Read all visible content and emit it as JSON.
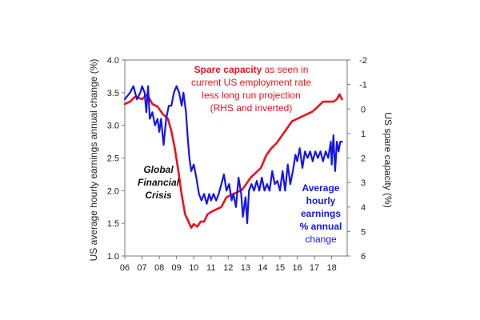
{
  "chart_data": {
    "type": "line",
    "title": "",
    "x_tick_labels": [
      "06",
      "07",
      "08",
      "09",
      "10",
      "11",
      "12",
      "13",
      "14",
      "15",
      "16",
      "17",
      "18"
    ],
    "x_range": [
      2006.0,
      2018.9
    ],
    "left_axis": {
      "label": "US average hourly earnings annual change (%)",
      "range": [
        1.0,
        4.0
      ],
      "ticks": [
        "1.0",
        "1.5",
        "2.0",
        "2.5",
        "3.0",
        "3.5",
        "4.0"
      ]
    },
    "right_axis": {
      "label": "US spare capacity (%)",
      "range": [
        6,
        -2
      ],
      "inverted": true,
      "ticks": [
        "-2",
        "-1",
        "0",
        "1",
        "2",
        "3",
        "4",
        "5",
        "6"
      ]
    },
    "series": [
      {
        "key": "spare",
        "axis": "right",
        "color": "#e8131c",
        "points": [
          [
            2006.0,
            -0.2
          ],
          [
            2006.3,
            -0.3
          ],
          [
            2006.6,
            -0.5
          ],
          [
            2007.0,
            -0.4
          ],
          [
            2007.3,
            -0.6
          ],
          [
            2007.6,
            -0.2
          ],
          [
            2007.9,
            -0.1
          ],
          [
            2008.2,
            0.2
          ],
          [
            2008.5,
            0.4
          ],
          [
            2008.7,
            0.9
          ],
          [
            2008.9,
            1.6
          ],
          [
            2009.1,
            2.5
          ],
          [
            2009.3,
            3.5
          ],
          [
            2009.5,
            4.3
          ],
          [
            2009.7,
            4.6
          ],
          [
            2009.85,
            4.85
          ],
          [
            2010.0,
            4.7
          ],
          [
            2010.2,
            4.8
          ],
          [
            2010.4,
            4.6
          ],
          [
            2010.6,
            4.6
          ],
          [
            2010.8,
            4.3
          ],
          [
            2011.0,
            4.2
          ],
          [
            2011.3,
            4.1
          ],
          [
            2011.6,
            4.0
          ],
          [
            2011.9,
            3.6
          ],
          [
            2012.2,
            3.5
          ],
          [
            2012.5,
            3.4
          ],
          [
            2012.8,
            3.3
          ],
          [
            2013.0,
            3.1
          ],
          [
            2013.3,
            2.8
          ],
          [
            2013.6,
            2.6
          ],
          [
            2013.9,
            2.4
          ],
          [
            2014.2,
            1.9
          ],
          [
            2014.5,
            1.6
          ],
          [
            2014.8,
            1.4
          ],
          [
            2015.1,
            1.1
          ],
          [
            2015.4,
            0.8
          ],
          [
            2015.7,
            0.5
          ],
          [
            2016.0,
            0.4
          ],
          [
            2016.3,
            0.3
          ],
          [
            2016.6,
            0.2
          ],
          [
            2016.9,
            0.1
          ],
          [
            2017.2,
            -0.1
          ],
          [
            2017.5,
            -0.3
          ],
          [
            2017.8,
            -0.3
          ],
          [
            2018.1,
            -0.3
          ],
          [
            2018.3,
            -0.4
          ],
          [
            2018.45,
            -0.6
          ],
          [
            2018.6,
            -0.4
          ]
        ]
      },
      {
        "key": "ahe",
        "axis": "left",
        "color": "#1616e6",
        "points": [
          [
            2006.0,
            3.4
          ],
          [
            2006.3,
            3.5
          ],
          [
            2006.5,
            3.6
          ],
          [
            2006.7,
            3.4
          ],
          [
            2006.9,
            3.5
          ],
          [
            2007.0,
            3.6
          ],
          [
            2007.15,
            3.5
          ],
          [
            2007.25,
            3.2
          ],
          [
            2007.35,
            3.6
          ],
          [
            2007.45,
            3.1
          ],
          [
            2007.6,
            3.2
          ],
          [
            2007.75,
            3.0
          ],
          [
            2007.9,
            3.1
          ],
          [
            2008.0,
            2.9
          ],
          [
            2008.1,
            3.1
          ],
          [
            2008.25,
            2.7
          ],
          [
            2008.4,
            3.1
          ],
          [
            2008.55,
            3.3
          ],
          [
            2008.7,
            3.3
          ],
          [
            2008.85,
            3.5
          ],
          [
            2009.0,
            3.6
          ],
          [
            2009.15,
            3.5
          ],
          [
            2009.3,
            3.3
          ],
          [
            2009.4,
            3.5
          ],
          [
            2009.55,
            3.2
          ],
          [
            2009.65,
            2.8
          ],
          [
            2009.75,
            2.5
          ],
          [
            2009.85,
            2.3
          ],
          [
            2010.0,
            2.4
          ],
          [
            2010.15,
            2.2
          ],
          [
            2010.3,
            1.95
          ],
          [
            2010.45,
            1.85
          ],
          [
            2010.6,
            1.95
          ],
          [
            2010.75,
            1.8
          ],
          [
            2010.9,
            1.95
          ],
          [
            2011.0,
            1.85
          ],
          [
            2011.15,
            1.95
          ],
          [
            2011.3,
            1.85
          ],
          [
            2011.45,
            1.95
          ],
          [
            2011.6,
            2.1
          ],
          [
            2011.75,
            2.25
          ],
          [
            2011.9,
            2.0
          ],
          [
            2012.05,
            2.1
          ],
          [
            2012.2,
            1.85
          ],
          [
            2012.3,
            1.95
          ],
          [
            2012.45,
            1.75
          ],
          [
            2012.6,
            2.2
          ],
          [
            2012.75,
            1.95
          ],
          [
            2012.85,
            1.6
          ],
          [
            2013.0,
            1.9
          ],
          [
            2013.1,
            1.5
          ],
          [
            2013.2,
            2.0
          ],
          [
            2013.35,
            2.1
          ],
          [
            2013.5,
            2.0
          ],
          [
            2013.65,
            2.15
          ],
          [
            2013.8,
            2.0
          ],
          [
            2013.95,
            2.2
          ],
          [
            2014.1,
            2.0
          ],
          [
            2014.25,
            2.1
          ],
          [
            2014.4,
            2.0
          ],
          [
            2014.55,
            2.3
          ],
          [
            2014.7,
            2.1
          ],
          [
            2014.85,
            2.15
          ],
          [
            2015.0,
            2.0
          ],
          [
            2015.15,
            2.3
          ],
          [
            2015.3,
            2.0
          ],
          [
            2015.45,
            2.4
          ],
          [
            2015.6,
            2.1
          ],
          [
            2015.75,
            2.3
          ],
          [
            2015.9,
            2.55
          ],
          [
            2016.0,
            2.45
          ],
          [
            2016.15,
            2.65
          ],
          [
            2016.3,
            2.35
          ],
          [
            2016.45,
            2.6
          ],
          [
            2016.6,
            2.5
          ],
          [
            2016.75,
            2.6
          ],
          [
            2016.9,
            2.45
          ],
          [
            2017.05,
            2.6
          ],
          [
            2017.2,
            2.5
          ],
          [
            2017.35,
            2.6
          ],
          [
            2017.5,
            2.45
          ],
          [
            2017.65,
            2.6
          ],
          [
            2017.8,
            2.5
          ],
          [
            2017.95,
            2.75
          ],
          [
            2018.0,
            2.4
          ],
          [
            2018.1,
            2.85
          ],
          [
            2018.2,
            2.3
          ],
          [
            2018.3,
            2.75
          ],
          [
            2018.4,
            2.6
          ],
          [
            2018.5,
            2.75
          ],
          [
            2018.6,
            2.75
          ]
        ]
      }
    ],
    "annotations": {
      "red_bold": "Spare capacity",
      "red_line1_rest": " as seen in",
      "red_line2": "current US employment rate",
      "red_line3": "less long run projection",
      "red_line4": "(RHS and inverted)",
      "black_line1": "Global",
      "black_line2": "Financial",
      "black_line3": "Crisis",
      "blue_line1": "Average",
      "blue_line2": "hourly",
      "blue_line3": "earnings",
      "blue_line4": "% annual",
      "blue_line5": "change"
    }
  }
}
